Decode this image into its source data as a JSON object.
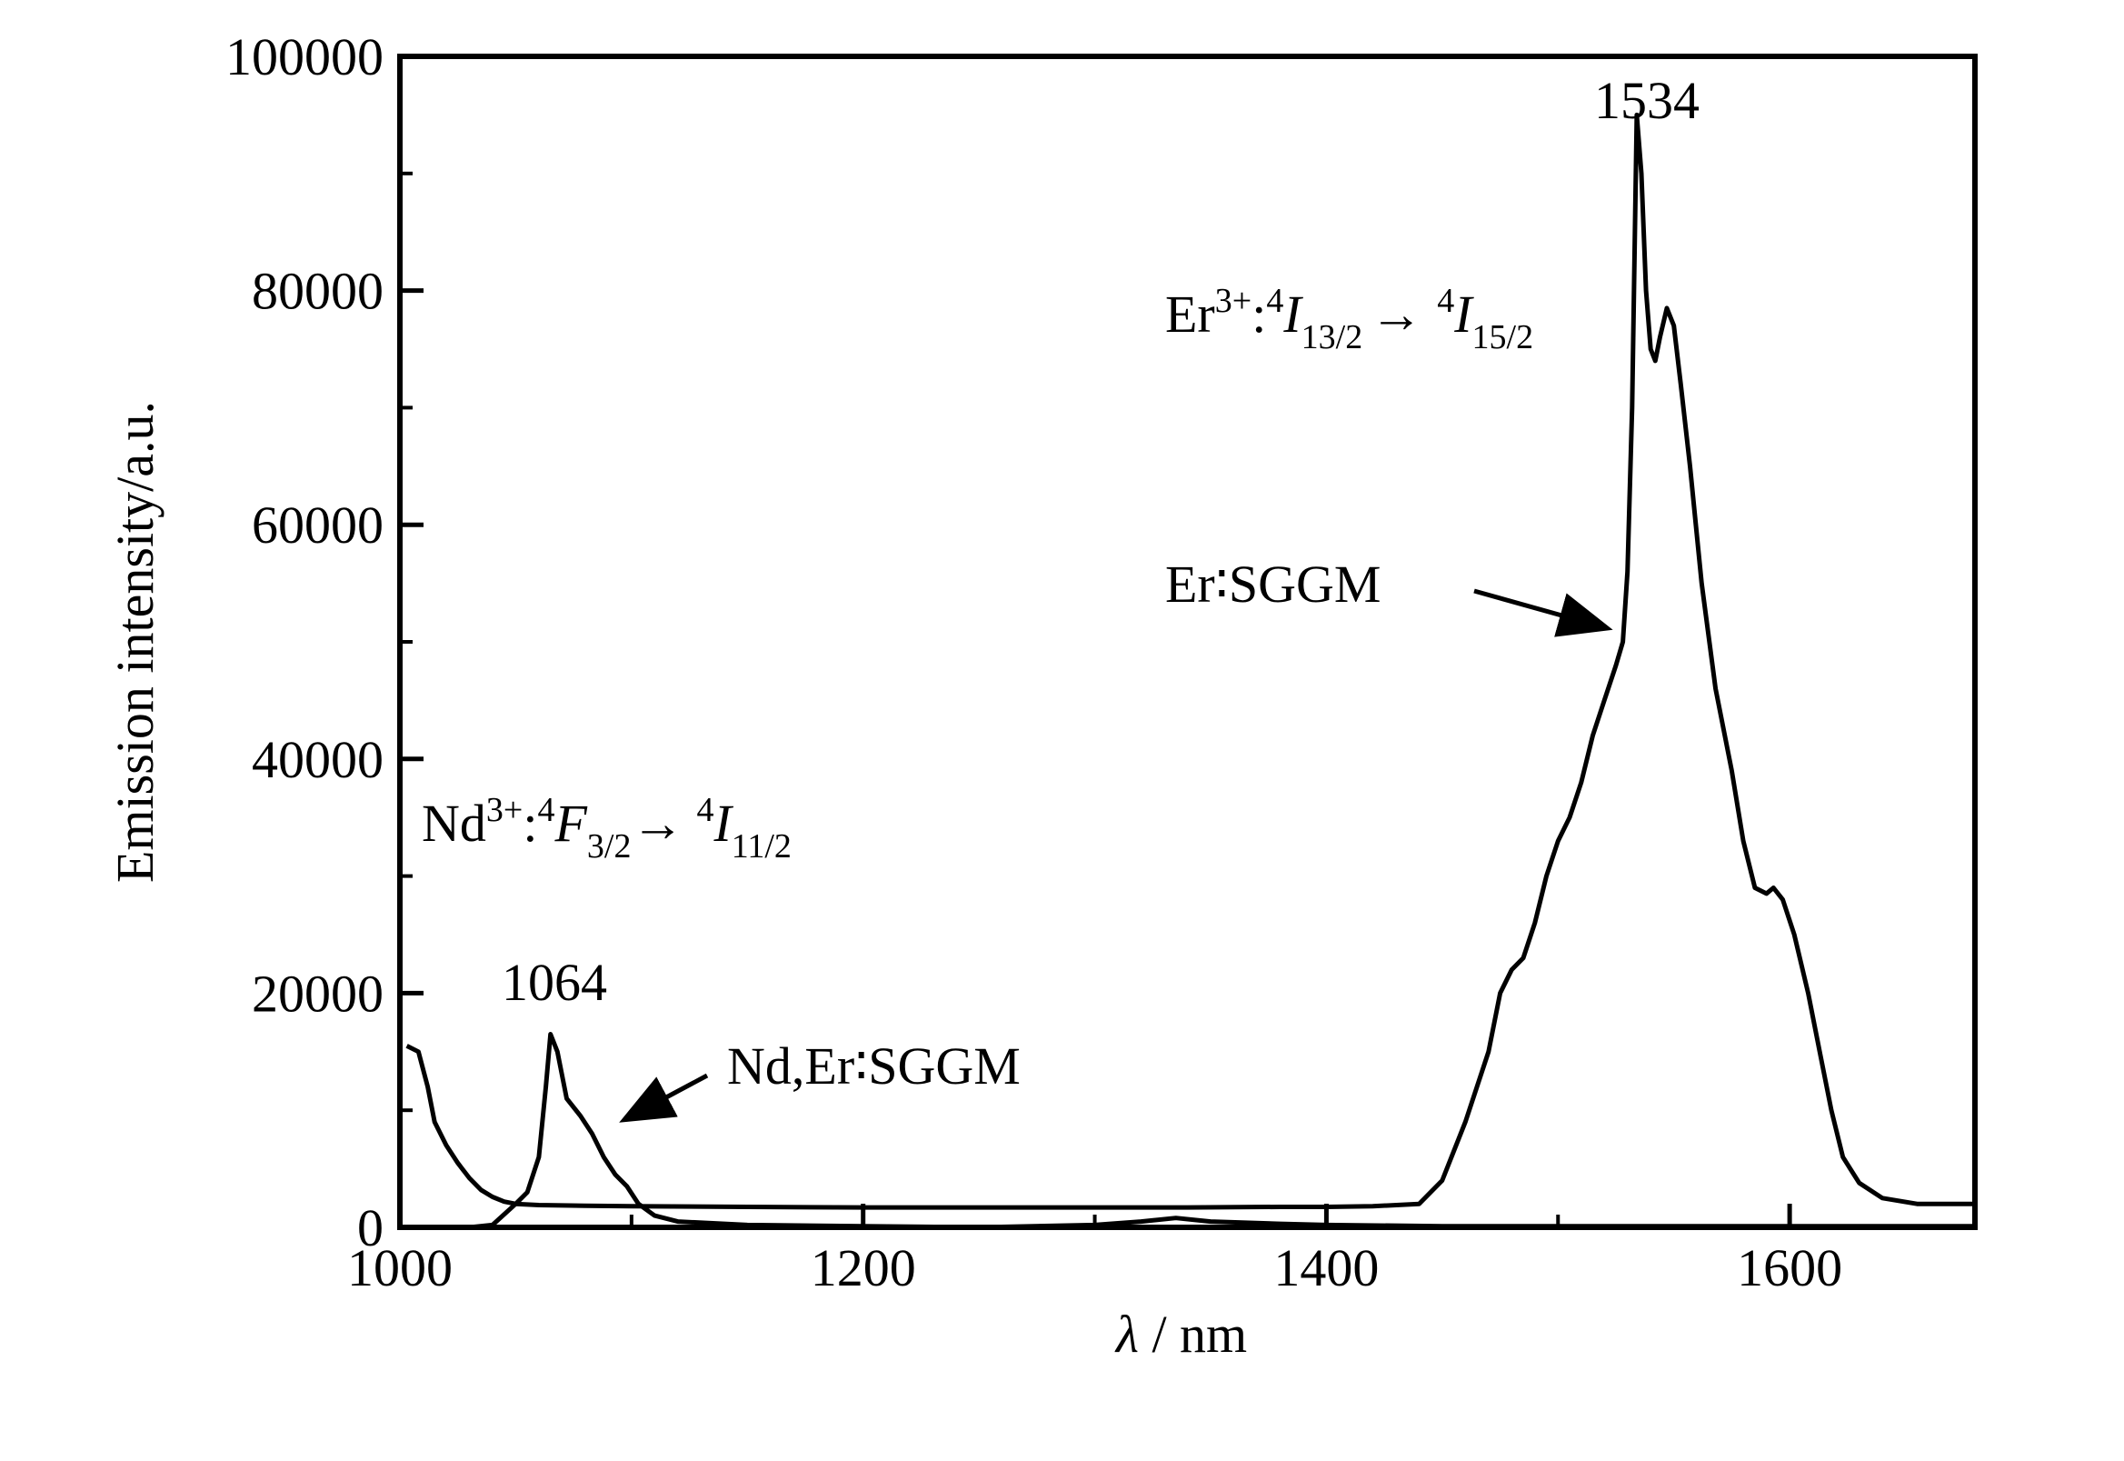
{
  "chart_data": {
    "type": "line",
    "xlabel": {
      "symbol": "λ",
      "rest": " / nm"
    },
    "ylabel": "Emission intensity/a.u.",
    "xlim": [
      1000,
      1680
    ],
    "ylim": [
      0,
      100000
    ],
    "x_ticks": [
      1000,
      1200,
      1400,
      1600
    ],
    "y_ticks": [
      0,
      20000,
      40000,
      60000,
      80000,
      100000
    ],
    "x_tick_labels": [
      "1000",
      "1200",
      "1400",
      "1600"
    ],
    "y_tick_labels": [
      "0",
      "20000",
      "40000",
      "60000",
      "80000",
      "100000"
    ],
    "grid": false,
    "legend": "none",
    "series": [
      {
        "id": "nd-er-sggm",
        "color": "#000000",
        "points": [
          [
            1003,
            15500
          ],
          [
            1008,
            15000
          ],
          [
            1012,
            12000
          ],
          [
            1015,
            9000
          ],
          [
            1020,
            7000
          ],
          [
            1025,
            5500
          ],
          [
            1030,
            4200
          ],
          [
            1035,
            3200
          ],
          [
            1040,
            2600
          ],
          [
            1045,
            2200
          ],
          [
            1050,
            2000
          ],
          [
            1060,
            1900
          ],
          [
            1080,
            1850
          ],
          [
            1100,
            1800
          ],
          [
            1150,
            1750
          ],
          [
            1200,
            1700
          ],
          [
            1250,
            1700
          ],
          [
            1300,
            1700
          ],
          [
            1340,
            1700
          ],
          [
            1380,
            1750
          ],
          [
            1400,
            1750
          ],
          [
            1420,
            1800
          ],
          [
            1440,
            2000
          ],
          [
            1450,
            4000
          ],
          [
            1460,
            9000
          ],
          [
            1470,
            15000
          ],
          [
            1475,
            20000
          ],
          [
            1480,
            22000
          ],
          [
            1485,
            23000
          ],
          [
            1490,
            26000
          ],
          [
            1495,
            30000
          ],
          [
            1500,
            33000
          ],
          [
            1505,
            35000
          ],
          [
            1510,
            38000
          ],
          [
            1515,
            42000
          ],
          [
            1520,
            45000
          ],
          [
            1525,
            48000
          ],
          [
            1528,
            50000
          ],
          [
            1530,
            56000
          ],
          [
            1532,
            70000
          ],
          [
            1534,
            95000
          ],
          [
            1536,
            90000
          ],
          [
            1538,
            80000
          ],
          [
            1540,
            75000
          ],
          [
            1542,
            74000
          ],
          [
            1544,
            76000
          ],
          [
            1547,
            78500
          ],
          [
            1550,
            77000
          ],
          [
            1553,
            72000
          ],
          [
            1557,
            65000
          ],
          [
            1562,
            55000
          ],
          [
            1568,
            46000
          ],
          [
            1575,
            39000
          ],
          [
            1580,
            33000
          ],
          [
            1585,
            29000
          ],
          [
            1590,
            28500
          ],
          [
            1593,
            29000
          ],
          [
            1597,
            28000
          ],
          [
            1602,
            25000
          ],
          [
            1608,
            20000
          ],
          [
            1613,
            15000
          ],
          [
            1618,
            10000
          ],
          [
            1623,
            6000
          ],
          [
            1630,
            3800
          ],
          [
            1640,
            2500
          ],
          [
            1655,
            2000
          ],
          [
            1665,
            2000
          ],
          [
            1680,
            2000
          ]
        ]
      },
      {
        "id": "er-sggm",
        "color": "#000000",
        "points": [
          [
            1003,
            0
          ],
          [
            1030,
            0
          ],
          [
            1040,
            200
          ],
          [
            1050,
            2000
          ],
          [
            1055,
            3000
          ],
          [
            1060,
            6000
          ],
          [
            1063,
            12000
          ],
          [
            1065,
            16500
          ],
          [
            1068,
            15000
          ],
          [
            1072,
            11000
          ],
          [
            1078,
            9500
          ],
          [
            1083,
            8000
          ],
          [
            1088,
            6000
          ],
          [
            1093,
            4500
          ],
          [
            1098,
            3500
          ],
          [
            1103,
            2000
          ],
          [
            1110,
            1000
          ],
          [
            1120,
            500
          ],
          [
            1150,
            200
          ],
          [
            1200,
            100
          ],
          [
            1250,
            0
          ],
          [
            1300,
            200
          ],
          [
            1320,
            500
          ],
          [
            1335,
            800
          ],
          [
            1350,
            500
          ],
          [
            1380,
            300
          ],
          [
            1400,
            200
          ],
          [
            1450,
            100
          ],
          [
            1500,
            100
          ],
          [
            1550,
            100
          ],
          [
            1600,
            100
          ],
          [
            1650,
            100
          ],
          [
            1680,
            100
          ]
        ]
      }
    ],
    "annotations": {
      "peak_1534": "1534",
      "peak_1064": "1064",
      "er_transition": {
        "ion": "Er",
        "charge": "3+",
        "colon": ":",
        "sup1": "4",
        "from": "I",
        "from_sub": "13/2",
        "arrow": "→",
        "sup2": "4",
        "to": "I",
        "to_sub": "15/2"
      },
      "nd_transition": {
        "ion": "Nd",
        "charge": "3+",
        "colon": ":",
        "sup1": "4",
        "from": "F",
        "from_sub": "3/2",
        "arrow": "→",
        "sup2": "4",
        "to": "I",
        "to_sub": "11/2"
      },
      "er_sggm_label": "Er∶SGGM",
      "nd_er_sggm_label": "Nd,Er∶SGGM"
    }
  }
}
